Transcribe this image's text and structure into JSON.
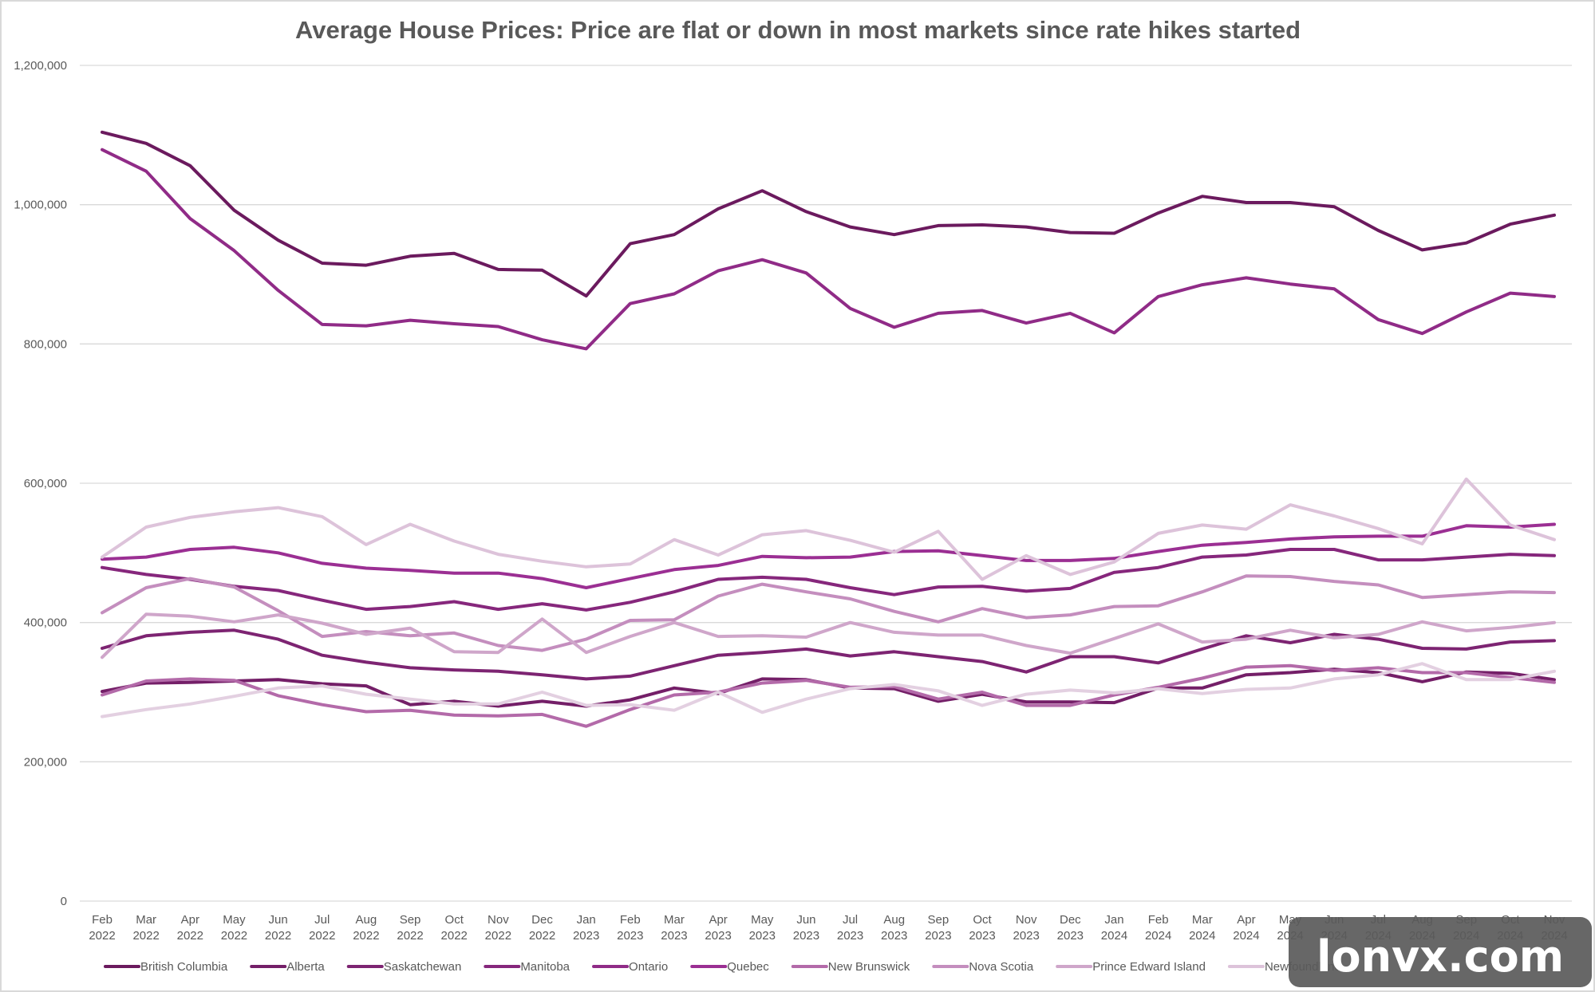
{
  "chart_data": {
    "type": "line",
    "title": "Average House Prices: Price are flat or down in most markets since rate hikes started",
    "xlabel": "",
    "ylabel": "",
    "ylim": [
      0,
      1200000
    ],
    "yticks": [
      0,
      200000,
      400000,
      600000,
      800000,
      1000000,
      1200000
    ],
    "ytick_labels": [
      "0",
      "200,000",
      "400,000",
      "600,000",
      "800,000",
      "1,000,000",
      "1,200,000"
    ],
    "grid": true,
    "legend_position": "bottom",
    "categories": [
      [
        "Feb",
        "2022"
      ],
      [
        "Mar",
        "2022"
      ],
      [
        "Apr",
        "2022"
      ],
      [
        "May",
        "2022"
      ],
      [
        "Jun",
        "2022"
      ],
      [
        "Jul",
        "2022"
      ],
      [
        "Aug",
        "2022"
      ],
      [
        "Sep",
        "2022"
      ],
      [
        "Oct",
        "2022"
      ],
      [
        "Nov",
        "2022"
      ],
      [
        "Dec",
        "2022"
      ],
      [
        "Jan",
        "2023"
      ],
      [
        "Feb",
        "2023"
      ],
      [
        "Mar",
        "2023"
      ],
      [
        "Apr",
        "2023"
      ],
      [
        "May",
        "2023"
      ],
      [
        "Jun",
        "2023"
      ],
      [
        "Jul",
        "2023"
      ],
      [
        "Aug",
        "2023"
      ],
      [
        "Sep",
        "2023"
      ],
      [
        "Oct",
        "2023"
      ],
      [
        "Nov",
        "2023"
      ],
      [
        "Dec",
        "2023"
      ],
      [
        "Jan",
        "2024"
      ],
      [
        "Feb",
        "2024"
      ],
      [
        "Mar",
        "2024"
      ],
      [
        "Apr",
        "2024"
      ],
      [
        "May",
        "2024"
      ],
      [
        "Jun",
        "2024"
      ],
      [
        "Jul",
        "2024"
      ],
      [
        "Aug",
        "2024"
      ],
      [
        "Sep",
        "2024"
      ],
      [
        "Oct",
        "2024"
      ],
      [
        "Nov",
        "2024"
      ]
    ],
    "series": [
      {
        "name": "British Columbia",
        "color": "#6b1a5e",
        "values": [
          1104000,
          1088000,
          1056000,
          992000,
          949000,
          916000,
          913000,
          926000,
          930000,
          907000,
          906000,
          869000,
          944000,
          957000,
          994000,
          1020000,
          990000,
          968000,
          957000,
          970000,
          971000,
          968000,
          960000,
          959000,
          988000,
          1012000,
          1003000,
          1003000,
          997000,
          963000,
          935000,
          945000,
          972000,
          985000
        ]
      },
      {
        "name": "Alberta",
        "color": "#741f68",
        "values": [
          301000,
          313000,
          314000,
          316000,
          318000,
          312000,
          309000,
          282000,
          287000,
          280000,
          287000,
          280000,
          289000,
          306000,
          298000,
          319000,
          318000,
          306000,
          305000,
          287000,
          297000,
          286000,
          286000,
          285000,
          306000,
          306000,
          325000,
          328000,
          333000,
          328000,
          315000,
          329000,
          327000,
          318000
        ]
      },
      {
        "name": "Saskatchewan",
        "color": "#7d2472",
        "values": [
          363000,
          381000,
          386000,
          389000,
          376000,
          353000,
          343000,
          335000,
          332000,
          330000,
          325000,
          319000,
          323000,
          338000,
          353000,
          357000,
          362000,
          352000,
          358000,
          351000,
          344000,
          329000,
          351000,
          351000,
          342000,
          362000,
          381000,
          371000,
          383000,
          376000,
          363000,
          362000,
          372000,
          374000
        ]
      },
      {
        "name": "Manitoba",
        "color": "#86277c",
        "values": [
          479000,
          469000,
          462000,
          452000,
          446000,
          432000,
          419000,
          423000,
          430000,
          419000,
          427000,
          418000,
          429000,
          444000,
          462000,
          465000,
          462000,
          450000,
          440000,
          451000,
          452000,
          445000,
          449000,
          472000,
          479000,
          494000,
          497000,
          505000,
          505000,
          490000,
          490000,
          494000,
          498000,
          496000
        ]
      },
      {
        "name": "Ontario",
        "color": "#902b87",
        "values": [
          1079000,
          1048000,
          980000,
          934000,
          877000,
          828000,
          826000,
          834000,
          829000,
          825000,
          806000,
          793000,
          858000,
          872000,
          905000,
          921000,
          902000,
          851000,
          824000,
          844000,
          848000,
          830000,
          844000,
          816000,
          868000,
          885000,
          895000,
          886000,
          879000,
          835000,
          815000,
          846000,
          873000,
          868000
        ]
      },
      {
        "name": "Quebec",
        "color": "#9b2f93",
        "values": [
          491000,
          494000,
          505000,
          508000,
          500000,
          485000,
          478000,
          475000,
          471000,
          471000,
          463000,
          450000,
          463000,
          476000,
          482000,
          495000,
          493000,
          494000,
          502000,
          503000,
          496000,
          489000,
          489000,
          492000,
          502000,
          511000,
          515000,
          520000,
          523000,
          524000,
          524000,
          539000,
          537000,
          541000
        ]
      },
      {
        "name": "New Brunswick",
        "color": "#b36aa9",
        "values": [
          296000,
          316000,
          319000,
          317000,
          295000,
          282000,
          272000,
          274000,
          267000,
          266000,
          268000,
          251000,
          275000,
          296000,
          300000,
          313000,
          317000,
          307000,
          308000,
          290000,
          300000,
          281000,
          281000,
          296000,
          307000,
          320000,
          336000,
          338000,
          331000,
          335000,
          328000,
          328000,
          321000,
          314000
        ]
      },
      {
        "name": "Nova Scotia",
        "color": "#c48ebe",
        "values": [
          414000,
          450000,
          463000,
          451000,
          417000,
          380000,
          387000,
          381000,
          385000,
          367000,
          360000,
          376000,
          403000,
          404000,
          438000,
          455000,
          444000,
          434000,
          416000,
          401000,
          420000,
          407000,
          411000,
          423000,
          424000,
          444000,
          467000,
          466000,
          459000,
          454000,
          436000,
          440000,
          444000,
          443000
        ]
      },
      {
        "name": "Prince Edward Island",
        "color": "#cfa6ca",
        "values": [
          350000,
          412000,
          409000,
          401000,
          411000,
          399000,
          383000,
          392000,
          358000,
          357000,
          405000,
          357000,
          380000,
          400000,
          380000,
          381000,
          379000,
          400000,
          386000,
          382000,
          382000,
          367000,
          356000,
          377000,
          398000,
          372000,
          376000,
          389000,
          378000,
          383000,
          401000,
          388000,
          393000,
          400000
        ]
      },
      {
        "name": "Newfoundland",
        "color": "#ddc3da",
        "values": [
          494000,
          537000,
          551000,
          559000,
          565000,
          552000,
          512000,
          541000,
          517000,
          498000,
          488000,
          480000,
          484000,
          519000,
          497000,
          526000,
          532000,
          518000,
          501000,
          531000,
          462000,
          496000,
          469000,
          487000,
          528000,
          540000,
          534000,
          569000,
          553000,
          535000,
          513000,
          606000,
          540000,
          519000
        ]
      },
      {
        "name": "",
        "color": "#e3d0e1",
        "values": [
          265000,
          275000,
          283000,
          294000,
          306000,
          309000,
          297000,
          290000,
          283000,
          283000,
          300000,
          281000,
          282000,
          274000,
          300000,
          271000,
          290000,
          305000,
          311000,
          302000,
          281000,
          297000,
          303000,
          299000,
          305000,
          298000,
          304000,
          306000,
          319000,
          325000,
          341000,
          318000,
          318000,
          330000
        ]
      }
    ]
  },
  "watermark": "lonvx.com"
}
